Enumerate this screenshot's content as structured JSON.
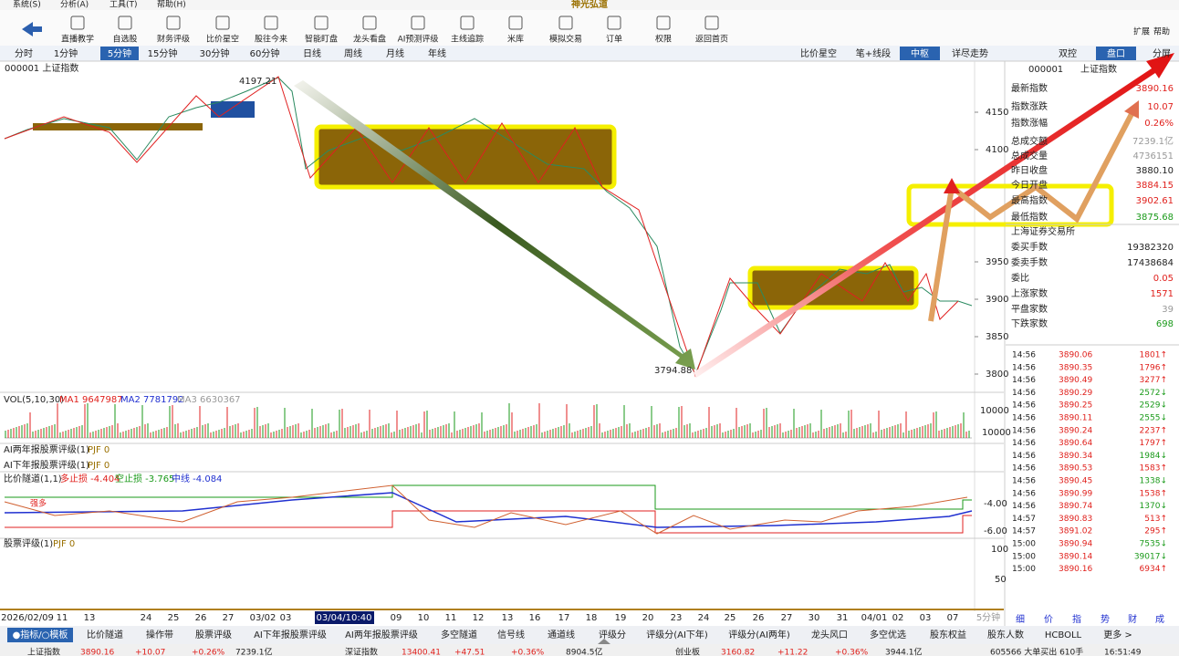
{
  "menu": [
    "系统(S)",
    "分析(A)",
    "工具(T)",
    "帮助(H)"
  ],
  "app_title": "神光弘道",
  "toolbar": [
    "直播教学",
    "自选股",
    "财务评级",
    "比价星空",
    "股往今来",
    "智能盯盘",
    "龙头看盘",
    "AI预测评级",
    "主线追踪",
    "米库",
    "模拟交易",
    "订单",
    "权限",
    "返回首页"
  ],
  "toolbar_right": [
    "扩展",
    "帮助"
  ],
  "periods": [
    "分时",
    "1分钟",
    "5分钟",
    "15分钟",
    "30分钟",
    "60分钟",
    "日线",
    "周线",
    "月线",
    "年线"
  ],
  "view_tabs": [
    "比价星空",
    "笔+线段",
    "中枢",
    "详尽走势",
    "双控",
    "盘口",
    "分屏"
  ],
  "main_chart": {
    "title": "000001 上证指数",
    "price_ticks": [
      4150,
      4100,
      3950,
      3900,
      3850,
      3800
    ],
    "high_label": "4197.21",
    "low_label": "3794.88"
  },
  "volume_panel": {
    "label": "VOL(5,10,30)",
    "ma1": "MA1 9647987",
    "ma2": "MA2 7781792",
    "ma3": "MA3 6630367",
    "ticks": [
      "10000",
      "10000"
    ]
  },
  "rating_panels": [
    {
      "label": "AI两年报股票评级(1)",
      "value": "PJF 0"
    },
    {
      "label": "AI下年报股票评级(1)",
      "value": "PJF 0"
    }
  ],
  "tunnel_panel": {
    "label": "比价隧道(1,1)",
    "long_stop": "多止损 -4.404",
    "short_stop": "空止损 -3.765",
    "mid": "中线 -4.084",
    "ticks": [
      "-4.00",
      "-6.00"
    ],
    "tag": "强多"
  },
  "stock_rating_panel": {
    "label": "股票评级(1)",
    "value": "PJF 0",
    "ticks": [
      "100",
      "50"
    ]
  },
  "dates": [
    "2026/02/09",
    "11",
    "13",
    "24",
    "25",
    "26",
    "27",
    "03/02",
    "03",
    "03/04/10:40",
    "09",
    "10",
    "11",
    "12",
    "13",
    "16",
    "17",
    "18",
    "19",
    "20",
    "23",
    "24",
    "25",
    "26",
    "27",
    "30",
    "31",
    "04/01",
    "02",
    "03",
    "07"
  ],
  "period_label": "5分钟",
  "bottom_tabs": [
    "●指标/○模板",
    "比价隧道",
    "操作带",
    "股票评级",
    "AI下年报股票评级",
    "AI两年报股票评级",
    "多空隧道",
    "信号线",
    "通道线",
    "评级分",
    "评级分(AI下年)",
    "评级分(AI两年)",
    "龙头风口",
    "多空优选",
    "股东权益",
    "股东人数",
    "HCBOLL",
    "更多 >"
  ],
  "status_bar": [
    "上证指数",
    "3890.16",
    "+10.07",
    "+0.26%",
    "7239.1亿",
    "深证指数",
    "13400.41",
    "+47.51",
    "+0.36%",
    "8904.5亿",
    "创业板",
    "3160.82",
    "+11.22",
    "+0.36%",
    "3944.1亿",
    "605566 大单买出 610手",
    "16:51:49"
  ],
  "quote_panel": {
    "code": "000001",
    "name": "上证指数",
    "rows": [
      [
        "最新指数",
        "3890.16"
      ],
      [
        "指数涨跌",
        "10.07"
      ],
      [
        "指数涨幅",
        "0.26%"
      ],
      [
        "总成交额",
        "7239.1亿"
      ],
      [
        "总成交量",
        "4736151"
      ],
      [
        "昨日收盘",
        "3880.10"
      ],
      [
        "今日开盘",
        "3884.15"
      ],
      [
        "最高指数",
        "3902.61"
      ],
      [
        "最低指数",
        "3875.68"
      ]
    ],
    "exchange": "上海证券交易所",
    "rows2": [
      [
        "委买手数",
        "19382320"
      ],
      [
        "委卖手数",
        "17438684"
      ],
      [
        "委比",
        "0.05"
      ],
      [
        "上涨家数",
        "1571"
      ],
      [
        "平盘家数",
        "39"
      ],
      [
        "下跌家数",
        "698"
      ]
    ],
    "ticks": [
      [
        "14:56",
        "3890.06",
        "1801↑"
      ],
      [
        "14:56",
        "3890.35",
        "1796↑"
      ],
      [
        "14:56",
        "3890.49",
        "3277↑"
      ],
      [
        "14:56",
        "3890.29",
        "2572↓"
      ],
      [
        "14:56",
        "3890.25",
        "2529↓"
      ],
      [
        "14:56",
        "3890.11",
        "2555↓"
      ],
      [
        "14:56",
        "3890.24",
        "2237↑"
      ],
      [
        "14:56",
        "3890.64",
        "1797↑"
      ],
      [
        "14:56",
        "3890.34",
        "1984↓"
      ],
      [
        "14:56",
        "3890.53",
        "1583↑"
      ],
      [
        "14:56",
        "3890.45",
        "1338↓"
      ],
      [
        "14:56",
        "3890.99",
        "1538↑"
      ],
      [
        "14:56",
        "3890.74",
        "1370↓"
      ],
      [
        "14:57",
        "3890.83",
        "513↑"
      ],
      [
        "14:57",
        "3891.02",
        "295↑"
      ],
      [
        "15:00",
        "3890.94",
        "7535↓"
      ],
      [
        "15:00",
        "3890.14",
        "39017↓"
      ],
      [
        "15:00",
        "3890.16",
        "6934↑"
      ]
    ],
    "tabs": [
      "细",
      "价",
      "指",
      "势",
      "财",
      "成"
    ]
  }
}
